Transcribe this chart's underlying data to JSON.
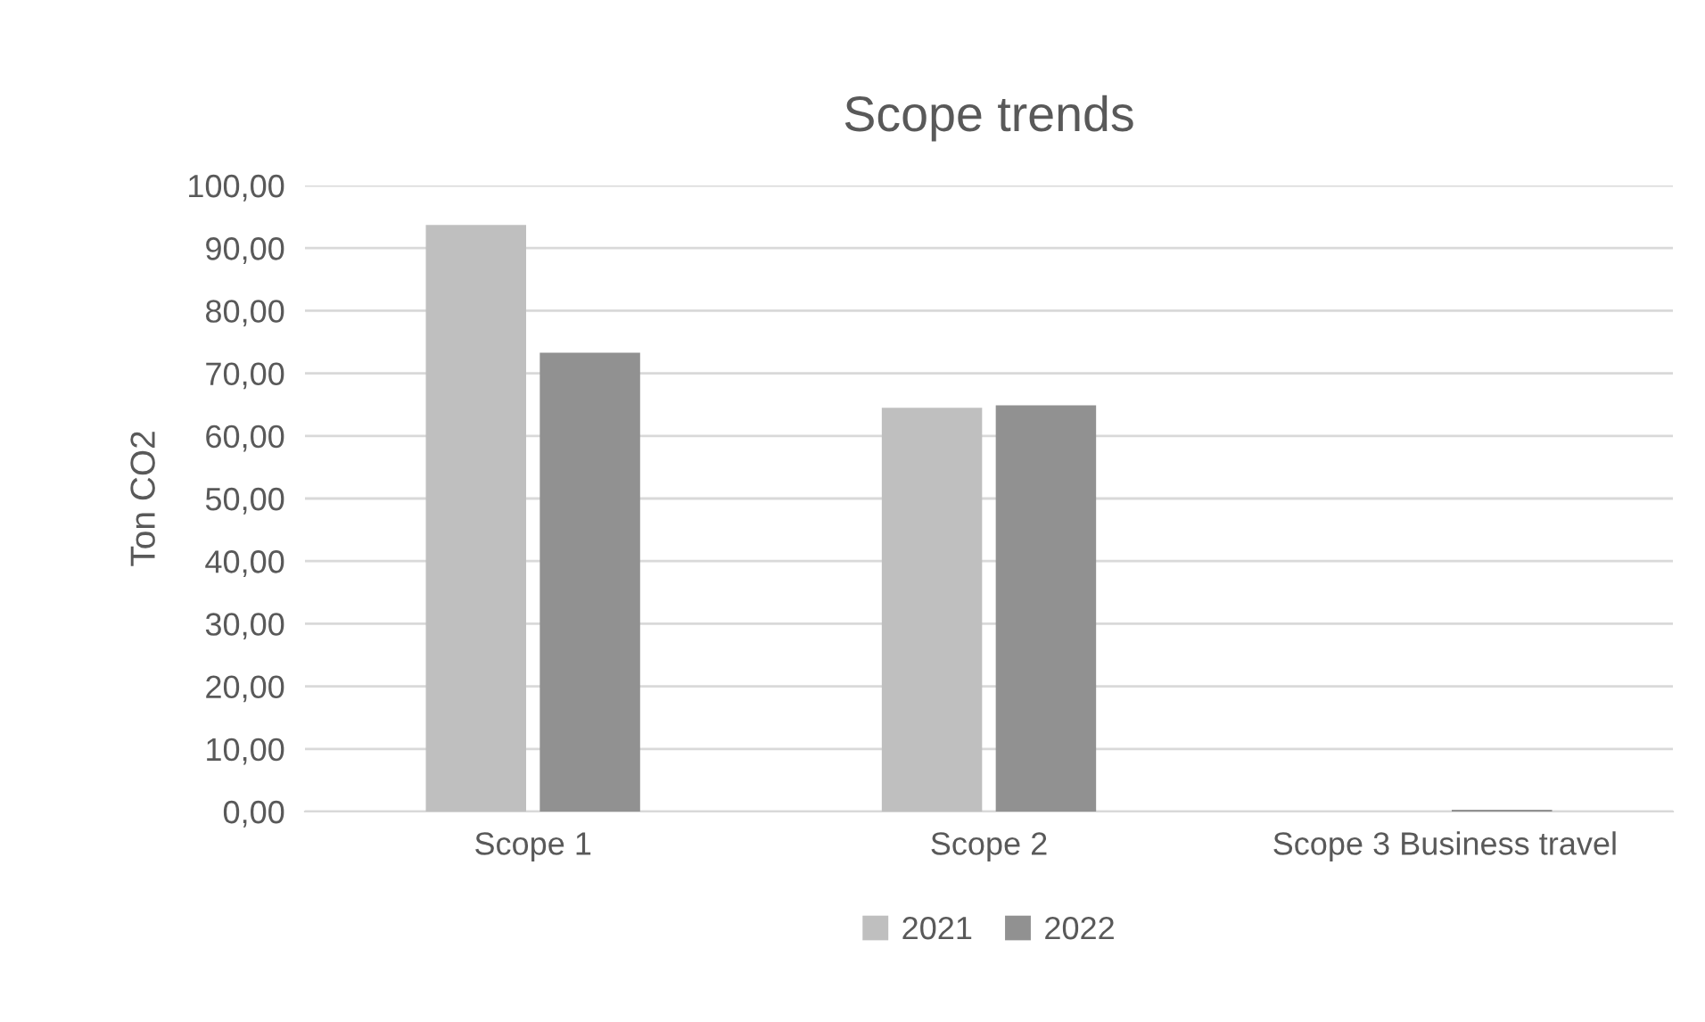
{
  "chart_data": {
    "type": "bar",
    "title": "Scope trends",
    "ylabel": "Ton CO2",
    "categories": [
      "Scope 1",
      "Scope 2",
      "Scope 3 Business travel"
    ],
    "series": [
      {
        "name": "2021",
        "color": "#bfbfbf",
        "values": [
          93.7,
          64.5,
          0
        ]
      },
      {
        "name": "2022",
        "color": "#919191",
        "values": [
          73.3,
          64.9,
          0.3
        ]
      }
    ],
    "ylim": [
      0,
      100
    ],
    "yticks": [
      {
        "value": 0,
        "label": "0,00"
      },
      {
        "value": 10,
        "label": "10,00"
      },
      {
        "value": 20,
        "label": "20,00"
      },
      {
        "value": 30,
        "label": "30,00"
      },
      {
        "value": 40,
        "label": "40,00"
      },
      {
        "value": 50,
        "label": "50,00"
      },
      {
        "value": 60,
        "label": "60,00"
      },
      {
        "value": 70,
        "label": "70,00"
      },
      {
        "value": 80,
        "label": "80,00"
      },
      {
        "value": 90,
        "label": "90,00"
      },
      {
        "value": 100,
        "label": "100,00"
      }
    ],
    "grid": "y",
    "legend": "bottom"
  }
}
